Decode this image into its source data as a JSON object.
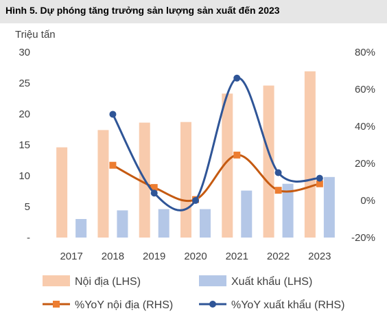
{
  "header": {
    "title": "Hình 5. Dự phóng tăng trưởng sản lượng sản xuất đến 2023"
  },
  "chart_data": {
    "type": "bar",
    "title": "Hình 5. Dự phóng tăng trưởng sản lượng sản xuất đến 2023",
    "ylabel": "Triệu tấn",
    "categories": [
      "2017",
      "2018",
      "2019",
      "2020",
      "2021",
      "2022",
      "2023"
    ],
    "ylim": [
      0,
      30
    ],
    "y_ticks": [
      "-",
      "5",
      "10",
      "15",
      "20",
      "25",
      "30"
    ],
    "y2lim": [
      -20,
      80
    ],
    "y2_ticks": [
      "-20%",
      "0%",
      "20%",
      "40%",
      "60%",
      "80%"
    ],
    "grid": false,
    "legend_position": "bottom",
    "series": [
      {
        "name": "Nội địa (LHS)",
        "type": "bar",
        "axis": "left",
        "color": "#f8cbad",
        "values": [
          14.6,
          17.4,
          18.6,
          18.7,
          23.3,
          24.6,
          26.9
        ]
      },
      {
        "name": "Xuất khẩu (LHS)",
        "type": "bar",
        "axis": "left",
        "color": "#b4c7e7",
        "values": [
          3.0,
          4.4,
          4.6,
          4.6,
          7.6,
          8.7,
          9.8
        ]
      },
      {
        "name": "%YoY nội địa (RHS)",
        "type": "line",
        "axis": "right",
        "color": "#c55a11",
        "marker": "square",
        "smooth": true,
        "values": [
          null,
          19,
          7,
          0.5,
          24.5,
          5.5,
          9
        ]
      },
      {
        "name": "%YoY xuất khẩu (RHS)",
        "type": "line",
        "axis": "right",
        "color": "#2f5597",
        "marker": "circle",
        "smooth": true,
        "values": [
          null,
          46.5,
          4,
          0,
          66,
          15,
          12
        ]
      }
    ]
  }
}
